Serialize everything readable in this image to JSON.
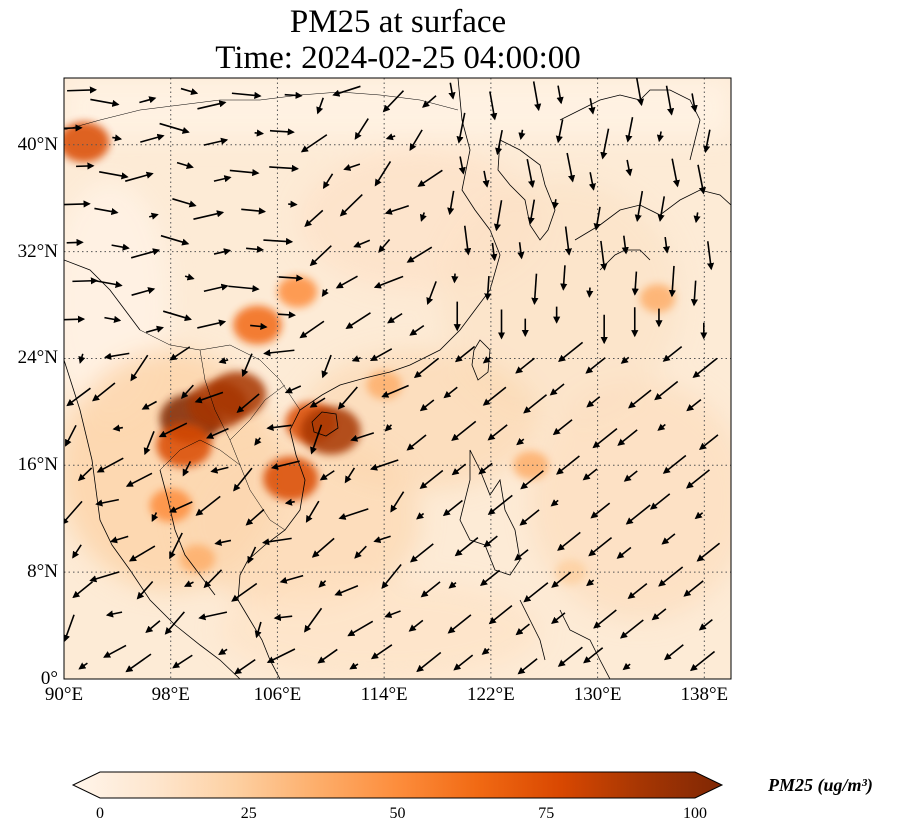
{
  "title": {
    "line1": "PM25 at surface",
    "line2": "Time: 2024-02-25 04:00:00"
  },
  "map": {
    "lon_range": [
      90,
      140
    ],
    "lat_range": [
      0,
      45
    ],
    "x_ticks": [
      {
        "lon": 90,
        "label": "90°E"
      },
      {
        "lon": 98,
        "label": "98°E"
      },
      {
        "lon": 106,
        "label": "106°E"
      },
      {
        "lon": 114,
        "label": "114°E"
      },
      {
        "lon": 122,
        "label": "122°E"
      },
      {
        "lon": 130,
        "label": "130°E"
      },
      {
        "lon": 138,
        "label": "138°E"
      }
    ],
    "y_ticks": [
      {
        "lat": 0,
        "label": "0°"
      },
      {
        "lat": 8,
        "label": "8°N"
      },
      {
        "lat": 16,
        "label": "16°N"
      },
      {
        "lat": 24,
        "label": "24°N"
      },
      {
        "lat": 32,
        "label": "32°N"
      },
      {
        "lat": 40,
        "label": "40°N"
      }
    ],
    "grid": "dotted",
    "variable": "PM25",
    "overlay": "wind vectors",
    "colormap": [
      "#fff5eb",
      "#fee6ce",
      "#fdd0a2",
      "#fdae6b",
      "#fd8d3c",
      "#f16913",
      "#d94801",
      "#a63603",
      "#7f2704"
    ],
    "hotspots": [
      {
        "lon": 91.5,
        "lat": 40.2,
        "value": 70
      },
      {
        "lon": 99.5,
        "lat": 19.5,
        "value": 95
      },
      {
        "lon": 101.5,
        "lat": 20.5,
        "value": 90
      },
      {
        "lon": 103,
        "lat": 21.3,
        "value": 85
      },
      {
        "lon": 99,
        "lat": 17.5,
        "value": 80
      },
      {
        "lon": 104.5,
        "lat": 26.5,
        "value": 65
      },
      {
        "lon": 107,
        "lat": 15,
        "value": 80
      },
      {
        "lon": 108.5,
        "lat": 19.2,
        "value": 70
      },
      {
        "lon": 110,
        "lat": 18.6,
        "value": 90
      },
      {
        "lon": 107.5,
        "lat": 29,
        "value": 45
      },
      {
        "lon": 98,
        "lat": 13,
        "value": 50
      },
      {
        "lon": 100,
        "lat": 9,
        "value": 35
      },
      {
        "lon": 114,
        "lat": 22,
        "value": 35
      },
      {
        "lon": 125,
        "lat": 16,
        "value": 35
      },
      {
        "lon": 134.5,
        "lat": 28.5,
        "value": 35
      },
      {
        "lon": 128,
        "lat": 8,
        "value": 25
      }
    ]
  },
  "colorbar": {
    "label": "PM25 (ug/m³)",
    "ticks": [
      "0",
      "25",
      "50",
      "75",
      "100"
    ],
    "range": [
      0,
      100
    ],
    "extend": "both",
    "colors": [
      "#fff5eb",
      "#fee6ce",
      "#fdd0a2",
      "#fdae6b",
      "#fd8d3c",
      "#f16913",
      "#d94801",
      "#a63603",
      "#7f2704"
    ]
  }
}
